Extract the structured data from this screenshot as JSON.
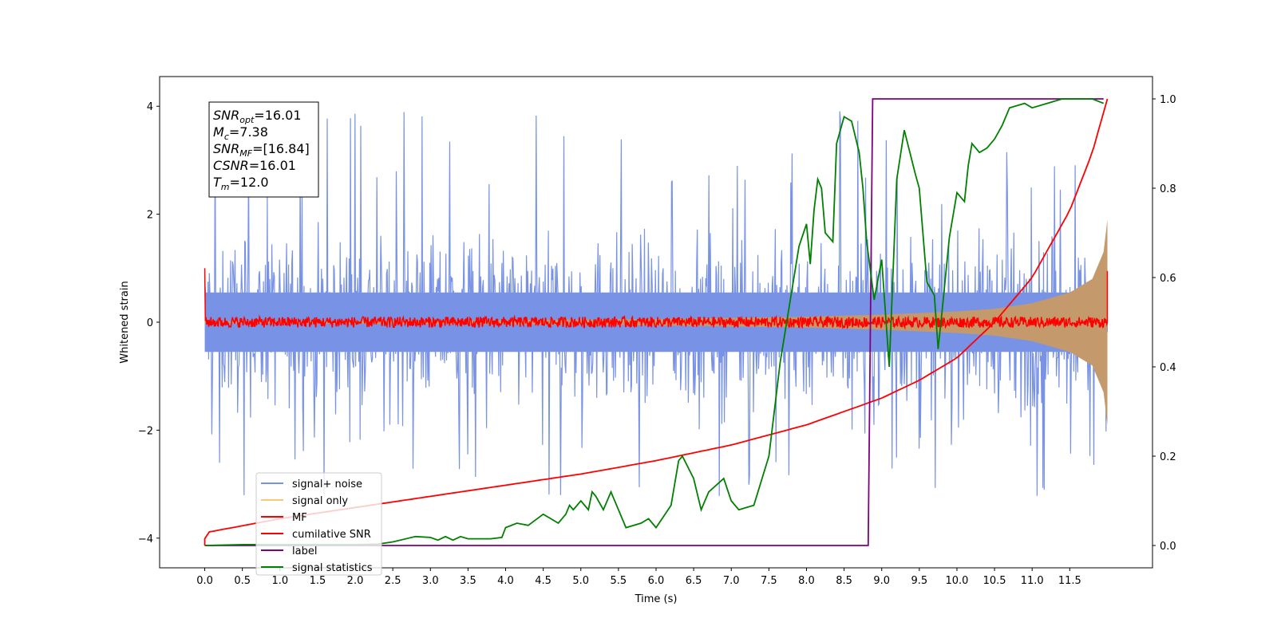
{
  "chart_data": {
    "type": "line",
    "xlabel": "Time (s)",
    "ylabel": "Whitened strain",
    "xlim": [
      -0.6,
      12.6
    ],
    "ylim": [
      -4.55,
      4.55
    ],
    "ylim_right": [
      -0.05,
      1.05
    ],
    "x_ticks": [
      0.0,
      0.5,
      1.0,
      1.5,
      2.0,
      2.5,
      3.0,
      3.5,
      4.0,
      4.5,
      5.0,
      5.5,
      6.0,
      6.5,
      7.0,
      7.5,
      8.0,
      8.5,
      9.0,
      9.5,
      10.0,
      10.5,
      11.0,
      11.5
    ],
    "x_tick_labels": [
      "0.0",
      "0.5",
      "1.0",
      "1.5",
      "2.0",
      "2.5",
      "3.0",
      "3.5",
      "4.0",
      "4.5",
      "5.0",
      "5.5",
      "6.0",
      "6.5",
      "7.0",
      "7.5",
      "8.0",
      "8.5",
      "9.0",
      "9.5",
      "10.0",
      "10.5",
      "11.0",
      "11.5"
    ],
    "y_ticks": [
      -4,
      -2,
      0,
      2,
      4
    ],
    "y_tick_labels": [
      "−4",
      "−2",
      "0",
      "2",
      "4"
    ],
    "y_ticks_right": [
      0.0,
      0.2,
      0.4,
      0.6,
      0.8,
      1.0
    ],
    "y_tick_labels_right": [
      "0.0",
      "0.2",
      "0.4",
      "0.6",
      "0.8",
      "1.0"
    ],
    "info_box": [
      {
        "sym": "SNR",
        "sub": "opt",
        "val": "=16.01"
      },
      {
        "sym": "M",
        "sub": "c",
        "val": "=7.38"
      },
      {
        "sym": "SNR",
        "sub": "MF",
        "val": "=[16.84]"
      },
      {
        "sym": "CSNR",
        "sub": "",
        "val": "=16.01"
      },
      {
        "sym": "T",
        "sub": "m",
        "val": "=12.0"
      }
    ],
    "legend": {
      "placement": "lower-left",
      "entries": [
        {
          "label": "signal+ noise",
          "color": "#7892e6"
        },
        {
          "label": "signal only",
          "color": "#f5c97a"
        },
        {
          "label": "MF",
          "color": "#ff0000"
        },
        {
          "label": "cumilative SNR",
          "color": "#ff0000"
        },
        {
          "label": "label",
          "color": "#800080"
        },
        {
          "label": "signal statistics",
          "color": "#008000"
        }
      ]
    },
    "series": [
      {
        "name": "signal+ noise",
        "axis": "left",
        "color": "#7892e6",
        "kind": "noise",
        "x_range": [
          0.0,
          12.0
        ],
        "band_typical": [
          -1.9,
          2.3
        ],
        "extremes": [
          -4.05,
          4.15
        ]
      },
      {
        "name": "signal only",
        "axis": "left",
        "color": "#c49a6c",
        "kind": "chirp_envelope",
        "x": [
          0,
          2,
          4,
          6,
          7,
          8,
          9,
          10,
          10.5,
          11,
          11.5,
          11.8,
          11.95,
          12.0
        ],
        "upper": [
          0.02,
          0.03,
          0.04,
          0.06,
          0.08,
          0.1,
          0.14,
          0.2,
          0.25,
          0.35,
          0.55,
          0.8,
          1.3,
          1.9
        ],
        "lower": [
          -0.02,
          -0.03,
          -0.04,
          -0.06,
          -0.08,
          -0.1,
          -0.14,
          -0.2,
          -0.25,
          -0.35,
          -0.55,
          -0.8,
          -1.3,
          -1.9
        ]
      },
      {
        "name": "MF",
        "axis": "left",
        "color": "#ff0000",
        "kind": "mf_trace",
        "x_range": [
          0.0,
          12.0
        ],
        "baseline": 0.0,
        "amplitude": 0.1,
        "start_value": 1.0,
        "end_value": 0.95
      },
      {
        "name": "cumilative SNR",
        "axis": "right",
        "color": "#ff0000",
        "x": [
          0.0,
          0.05,
          1,
          2,
          3,
          4,
          5,
          6,
          7,
          8,
          8.5,
          9,
          9.5,
          10,
          10.5,
          11,
          11.5,
          11.8,
          12.0
        ],
        "y": [
          0.015,
          0.03,
          0.06,
          0.085,
          0.11,
          0.135,
          0.16,
          0.19,
          0.225,
          0.27,
          0.3,
          0.33,
          0.37,
          0.42,
          0.5,
          0.6,
          0.75,
          0.88,
          1.0
        ]
      },
      {
        "name": "label",
        "axis": "right",
        "color": "#800080",
        "x": [
          0.0,
          8.82,
          8.88,
          11.95
        ],
        "y": [
          0.0,
          0.0,
          1.0,
          1.0
        ]
      },
      {
        "name": "signal statistics",
        "axis": "right",
        "color": "#008000",
        "x": [
          0.0,
          0.5,
          1.0,
          1.5,
          2.0,
          2.3,
          2.5,
          2.8,
          3.0,
          3.1,
          3.2,
          3.3,
          3.4,
          3.5,
          3.8,
          3.95,
          4.0,
          4.15,
          4.3,
          4.5,
          4.6,
          4.7,
          4.8,
          4.85,
          4.9,
          5.0,
          5.1,
          5.15,
          5.2,
          5.3,
          5.4,
          5.5,
          5.6,
          5.8,
          5.9,
          6.0,
          6.2,
          6.3,
          6.35,
          6.5,
          6.6,
          6.7,
          6.9,
          7.0,
          7.1,
          7.3,
          7.5,
          7.65,
          7.9,
          8.0,
          8.05,
          8.1,
          8.15,
          8.2,
          8.25,
          8.35,
          8.4,
          8.5,
          8.6,
          8.7,
          8.75,
          8.8,
          8.9,
          9.0,
          9.1,
          9.2,
          9.3,
          9.45,
          9.5,
          9.6,
          9.7,
          9.75,
          9.8,
          9.9,
          10.0,
          10.1,
          10.15,
          10.2,
          10.3,
          10.4,
          10.5,
          10.6,
          10.7,
          10.9,
          11.0,
          11.2,
          11.4,
          11.6,
          11.8,
          11.95
        ],
        "y": [
          0.0,
          0.002,
          0.002,
          0.002,
          0.002,
          0.003,
          0.008,
          0.02,
          0.018,
          0.012,
          0.02,
          0.012,
          0.02,
          0.015,
          0.015,
          0.018,
          0.04,
          0.05,
          0.045,
          0.07,
          0.06,
          0.05,
          0.07,
          0.09,
          0.08,
          0.1,
          0.08,
          0.12,
          0.11,
          0.08,
          0.12,
          0.08,
          0.04,
          0.05,
          0.06,
          0.04,
          0.09,
          0.19,
          0.2,
          0.15,
          0.08,
          0.12,
          0.15,
          0.1,
          0.08,
          0.09,
          0.2,
          0.41,
          0.67,
          0.72,
          0.63,
          0.75,
          0.82,
          0.8,
          0.7,
          0.68,
          0.9,
          0.96,
          0.95,
          0.88,
          0.8,
          0.68,
          0.55,
          0.64,
          0.4,
          0.82,
          0.93,
          0.83,
          0.8,
          0.59,
          0.56,
          0.44,
          0.52,
          0.69,
          0.79,
          0.77,
          0.85,
          0.9,
          0.88,
          0.89,
          0.91,
          0.94,
          0.98,
          0.99,
          0.98,
          0.99,
          1.0,
          1.0,
          1.0,
          0.99
        ]
      }
    ]
  }
}
